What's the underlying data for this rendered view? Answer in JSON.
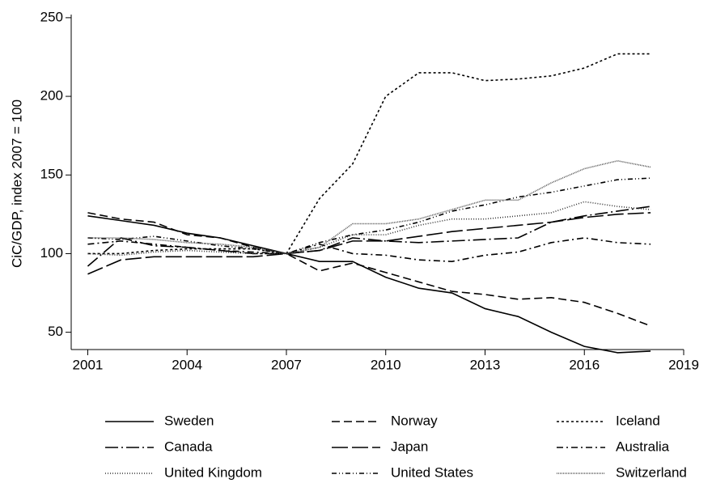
{
  "chart_data": {
    "type": "line",
    "y_label": "CiC/GDP, index 2007 = 100",
    "x": [
      2001,
      2002,
      2003,
      2004,
      2005,
      2006,
      2007,
      2008,
      2009,
      2010,
      2011,
      2012,
      2013,
      2014,
      2015,
      2016,
      2017,
      2018
    ],
    "xlim": [
      2000.5,
      2019
    ],
    "xticks": [
      2001,
      2004,
      2007,
      2010,
      2013,
      2016,
      2019
    ],
    "ylim": [
      39,
      252
    ],
    "yticks": [
      50,
      100,
      150,
      200,
      250
    ],
    "series": [
      {
        "name": "Sweden",
        "color": "#000000",
        "dash": "none",
        "values": [
          124,
          121,
          118,
          113,
          110,
          105,
          100,
          95,
          95,
          85,
          78,
          75,
          65,
          60,
          50,
          41,
          37,
          38
        ]
      },
      {
        "name": "Norway",
        "color": "#000000",
        "dash": "10 5",
        "values": [
          126,
          122,
          120,
          112,
          110,
          104,
          100,
          89,
          94,
          88,
          82,
          76,
          74,
          71,
          72,
          69,
          62,
          54
        ]
      },
      {
        "name": "Iceland",
        "color": "#000000",
        "dash": "3 3",
        "values": [
          100,
          100,
          102,
          103,
          103,
          103,
          100,
          135,
          157,
          200,
          215,
          215,
          210,
          211,
          213,
          218,
          227,
          227
        ]
      },
      {
        "name": "Canada",
        "color": "#000000",
        "dash": "16 4 2 4",
        "values": [
          92,
          110,
          105,
          104,
          102,
          100,
          100,
          102,
          110,
          108,
          107,
          108,
          109,
          110,
          120,
          124,
          127,
          130
        ]
      },
      {
        "name": "Japan",
        "color": "#000000",
        "dash": "20 5",
        "values": [
          87,
          96,
          98,
          98,
          98,
          98,
          100,
          102,
          108,
          108,
          111,
          114,
          116,
          118,
          120,
          123,
          125,
          126
        ]
      },
      {
        "name": "Australia",
        "color": "#000000",
        "dash": "8 4 2 4",
        "values": [
          106,
          108,
          106,
          104,
          102,
          101,
          100,
          106,
          100,
          99,
          96,
          95,
          99,
          101,
          107,
          110,
          107,
          106
        ]
      },
      {
        "name": "United Kingdom",
        "color": "#333333",
        "dash": "1 2",
        "values": [
          100,
          99,
          101,
          102,
          101,
          100,
          100,
          104,
          112,
          112,
          118,
          122,
          122,
          124,
          126,
          133,
          130,
          128
        ]
      },
      {
        "name": "United States",
        "color": "#000000",
        "dash": "6 3 1 3 1 3",
        "values": [
          110,
          109,
          111,
          108,
          105,
          103,
          100,
          107,
          112,
          115,
          120,
          127,
          131,
          136,
          139,
          143,
          147,
          148
        ]
      },
      {
        "name": "Switzerland",
        "color": "#555555",
        "dash": "1 1",
        "values": [
          110,
          110,
          109,
          107,
          106,
          104,
          100,
          104,
          119,
          119,
          122,
          128,
          134,
          134,
          145,
          154,
          159,
          155
        ]
      }
    ]
  }
}
